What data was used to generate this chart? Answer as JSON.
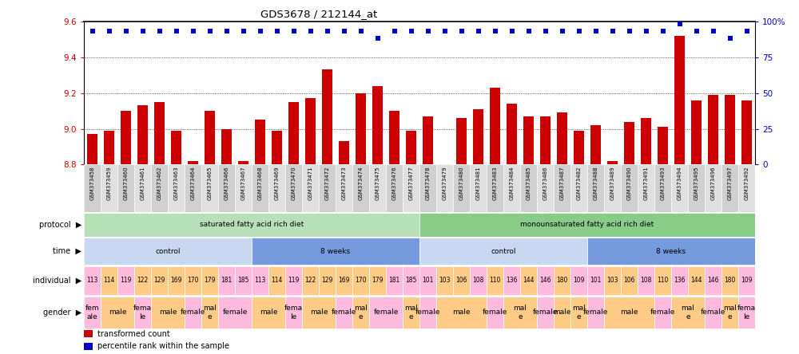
{
  "title": "GDS3678 / 212144_at",
  "samples": [
    "GSM373458",
    "GSM373459",
    "GSM373460",
    "GSM373461",
    "GSM373462",
    "GSM373463",
    "GSM373464",
    "GSM373465",
    "GSM373466",
    "GSM373467",
    "GSM373468",
    "GSM373469",
    "GSM373470",
    "GSM373471",
    "GSM373472",
    "GSM373473",
    "GSM373474",
    "GSM373475",
    "GSM373476",
    "GSM373477",
    "GSM373478",
    "GSM373479",
    "GSM373480",
    "GSM373481",
    "GSM373483",
    "GSM373484",
    "GSM373485",
    "GSM373486",
    "GSM373487",
    "GSM373482",
    "GSM373488",
    "GSM373489",
    "GSM373490",
    "GSM373491",
    "GSM373493",
    "GSM373494",
    "GSM373495",
    "GSM373496",
    "GSM373497",
    "GSM373492"
  ],
  "bar_values": [
    8.97,
    8.99,
    9.1,
    9.13,
    9.15,
    8.99,
    8.82,
    9.1,
    9.0,
    8.82,
    9.05,
    8.99,
    9.15,
    9.17,
    9.33,
    8.93,
    9.2,
    9.24,
    9.1,
    8.99,
    9.07,
    8.79,
    9.06,
    9.11,
    9.23,
    9.14,
    9.07,
    9.07,
    9.09,
    8.99,
    9.02,
    8.82,
    9.04,
    9.06,
    9.01,
    9.52,
    9.16,
    9.19,
    9.19,
    9.16
  ],
  "percentile_values": [
    93,
    93,
    93,
    93,
    93,
    93,
    93,
    93,
    93,
    93,
    93,
    93,
    93,
    93,
    93,
    93,
    93,
    88,
    93,
    93,
    93,
    93,
    93,
    93,
    93,
    93,
    93,
    93,
    93,
    93,
    93,
    93,
    93,
    93,
    93,
    98,
    93,
    93,
    88,
    93
  ],
  "ylim_left": [
    8.8,
    9.6
  ],
  "ylim_right": [
    0,
    100
  ],
  "yticks_left": [
    8.8,
    9.0,
    9.2,
    9.4,
    9.6
  ],
  "yticks_right": [
    0,
    25,
    50,
    75,
    100
  ],
  "bar_color": "#cc0000",
  "dot_color": "#0000cc",
  "background_color": "#ffffff",
  "protocol_groups": [
    {
      "label": "saturated fatty acid rich diet",
      "start": 0,
      "end": 20,
      "color": "#b8e0b8"
    },
    {
      "label": "monounsaturated fatty acid rich diet",
      "start": 20,
      "end": 40,
      "color": "#88cc88"
    }
  ],
  "time_groups": [
    {
      "label": "control",
      "start": 0,
      "end": 10,
      "color": "#c8d8f0"
    },
    {
      "label": "8 weeks",
      "start": 10,
      "end": 20,
      "color": "#7799dd"
    },
    {
      "label": "control",
      "start": 20,
      "end": 30,
      "color": "#c8d8f0"
    },
    {
      "label": "8 weeks",
      "start": 30,
      "end": 40,
      "color": "#7799dd"
    }
  ],
  "individual_labels": [
    "113",
    "114",
    "119",
    "122",
    "129",
    "169",
    "170",
    "179",
    "181",
    "185",
    "113",
    "114",
    "119",
    "122",
    "129",
    "169",
    "170",
    "179",
    "181",
    "185",
    "101",
    "103",
    "106",
    "108",
    "110",
    "136",
    "144",
    "146",
    "180",
    "109",
    "101",
    "103",
    "106",
    "108",
    "110",
    "136",
    "144",
    "146",
    "180",
    "109"
  ],
  "individual_colors": [
    "#ffbbdd",
    "#ffcc88",
    "#ffbbdd",
    "#ffcc88",
    "#ffcc88",
    "#ffcc88",
    "#ffcc88",
    "#ffcc88",
    "#ffbbdd",
    "#ffbbdd",
    "#ffbbdd",
    "#ffcc88",
    "#ffbbdd",
    "#ffcc88",
    "#ffcc88",
    "#ffcc88",
    "#ffcc88",
    "#ffcc88",
    "#ffbbdd",
    "#ffbbdd",
    "#ffbbdd",
    "#ffcc88",
    "#ffcc88",
    "#ffbbdd",
    "#ffcc88",
    "#ffbbdd",
    "#ffcc88",
    "#ffbbdd",
    "#ffcc88",
    "#ffbbdd",
    "#ffbbdd",
    "#ffcc88",
    "#ffcc88",
    "#ffbbdd",
    "#ffcc88",
    "#ffbbdd",
    "#ffcc88",
    "#ffbbdd",
    "#ffcc88",
    "#ffbbdd"
  ],
  "gender_groups": [
    {
      "label": "fem\nale",
      "start": 0,
      "end": 1,
      "color": "#ffbbdd"
    },
    {
      "label": "male",
      "start": 1,
      "end": 3,
      "color": "#ffcc88"
    },
    {
      "label": "fema\nle",
      "start": 3,
      "end": 4,
      "color": "#ffbbdd"
    },
    {
      "label": "male",
      "start": 4,
      "end": 6,
      "color": "#ffcc88"
    },
    {
      "label": "female",
      "start": 6,
      "end": 7,
      "color": "#ffbbdd"
    },
    {
      "label": "mal\ne",
      "start": 7,
      "end": 8,
      "color": "#ffcc88"
    },
    {
      "label": "female",
      "start": 8,
      "end": 10,
      "color": "#ffbbdd"
    },
    {
      "label": "male",
      "start": 10,
      "end": 12,
      "color": "#ffcc88"
    },
    {
      "label": "fema\nle",
      "start": 12,
      "end": 13,
      "color": "#ffbbdd"
    },
    {
      "label": "male",
      "start": 13,
      "end": 15,
      "color": "#ffcc88"
    },
    {
      "label": "female",
      "start": 15,
      "end": 16,
      "color": "#ffbbdd"
    },
    {
      "label": "mal\ne",
      "start": 16,
      "end": 17,
      "color": "#ffcc88"
    },
    {
      "label": "female",
      "start": 17,
      "end": 19,
      "color": "#ffbbdd"
    },
    {
      "label": "mal\ne",
      "start": 19,
      "end": 20,
      "color": "#ffcc88"
    },
    {
      "label": "female",
      "start": 20,
      "end": 21,
      "color": "#ffbbdd"
    },
    {
      "label": "male",
      "start": 21,
      "end": 24,
      "color": "#ffcc88"
    },
    {
      "label": "female",
      "start": 24,
      "end": 25,
      "color": "#ffbbdd"
    },
    {
      "label": "mal\ne",
      "start": 25,
      "end": 27,
      "color": "#ffcc88"
    },
    {
      "label": "female",
      "start": 27,
      "end": 28,
      "color": "#ffbbdd"
    },
    {
      "label": "male",
      "start": 28,
      "end": 29,
      "color": "#ffcc88"
    },
    {
      "label": "mal\ne",
      "start": 29,
      "end": 30,
      "color": "#ffcc88"
    },
    {
      "label": "female",
      "start": 30,
      "end": 31,
      "color": "#ffbbdd"
    },
    {
      "label": "male",
      "start": 31,
      "end": 34,
      "color": "#ffcc88"
    },
    {
      "label": "female",
      "start": 34,
      "end": 35,
      "color": "#ffbbdd"
    },
    {
      "label": "mal\ne",
      "start": 35,
      "end": 37,
      "color": "#ffcc88"
    },
    {
      "label": "female",
      "start": 37,
      "end": 38,
      "color": "#ffbbdd"
    },
    {
      "label": "mal\ne",
      "start": 38,
      "end": 39,
      "color": "#ffcc88"
    },
    {
      "label": "fema\nle",
      "start": 39,
      "end": 40,
      "color": "#ffbbdd"
    }
  ],
  "row_labels": [
    "protocol",
    "time",
    "individual",
    "gender"
  ],
  "legend_items": [
    {
      "color": "#cc0000",
      "label": "transformed count"
    },
    {
      "color": "#0000cc",
      "label": "percentile rank within the sample"
    }
  ]
}
